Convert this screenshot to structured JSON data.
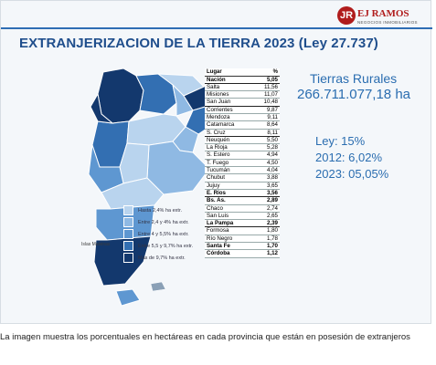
{
  "slide": {
    "title": "EXTRANJERIZACION DE LA TIERRA 2023 (Ley 27.737)",
    "logo": {
      "badge": "JR",
      "name": "EJ RAMOS",
      "sub": "NEGOCIOS INMOBILIARIOS"
    },
    "colors": {
      "accent": "#2a6db0",
      "title": "#1f4e8c",
      "brand_red": "#b01c1c"
    }
  },
  "map": {
    "islas_label": "Islas Malvinas",
    "legend": [
      {
        "label": "Hasta 2,4% ha extr.",
        "color": "#b9d4ee"
      },
      {
        "label": "Entre 2,4 y 4% ha extr.",
        "color": "#8fb9e3"
      },
      {
        "label": "Entre 4 y 5,5% ha extr.",
        "color": "#5e97d1"
      },
      {
        "label": "Entre 5,5 y 9,7% ha extr.",
        "color": "#336fb2"
      },
      {
        "label": "Más de 9,7% ha extr.",
        "color": "#13386d"
      }
    ]
  },
  "table": {
    "headers": [
      "Lugar",
      "%"
    ],
    "rows": [
      {
        "name": "Nación",
        "value": "5,05",
        "bold": true,
        "sep": true
      },
      {
        "name": "Salta",
        "value": "11,56"
      },
      {
        "name": "Misiones",
        "value": "11,07"
      },
      {
        "name": "San Juan",
        "value": "10,48",
        "sep": true
      },
      {
        "name": "Corrientes",
        "value": "9,87"
      },
      {
        "name": "Mendoza",
        "value": "9,11"
      },
      {
        "name": "Catamarca",
        "value": "8,64"
      },
      {
        "name": "S. Cruz",
        "value": "8,11",
        "sep": true
      },
      {
        "name": "Neuquén",
        "value": "5,50"
      },
      {
        "name": "La Rioja",
        "value": "5,28"
      },
      {
        "name": "S. Estero",
        "value": "4,94"
      },
      {
        "name": "T. Fuego",
        "value": "4,50"
      },
      {
        "name": "Tucumán",
        "value": "4,04"
      },
      {
        "name": "Chubut",
        "value": "3,88"
      },
      {
        "name": "Jujuy",
        "value": "3,65"
      },
      {
        "name": "E. Ríos",
        "value": "3,56",
        "bold": true,
        "sep": true
      },
      {
        "name": "Bs. As.",
        "value": "2,89",
        "bold": true
      },
      {
        "name": "Chaco",
        "value": "2,74"
      },
      {
        "name": "San Luis",
        "value": "2,65"
      },
      {
        "name": "La Pampa",
        "value": "2,39",
        "bold": true,
        "sep": true
      },
      {
        "name": "Formosa",
        "value": "1,80"
      },
      {
        "name": "Río Negro",
        "value": "1,78"
      },
      {
        "name": "Santa Fe",
        "value": "1,70",
        "bold": true
      },
      {
        "name": "Córdoba",
        "value": "1,12",
        "bold": true
      }
    ]
  },
  "tierras": {
    "label": "Tierras Rurales",
    "value": "266.711.077,18 ha"
  },
  "stats": {
    "ley": "Ley: 15%",
    "y2012": "2012: 6,02%",
    "y2023": "2023: 05,05%"
  },
  "caption": "La imagen muestra los porcentuales en hectáreas en cada provincia que están en posesión de extranjeros"
}
